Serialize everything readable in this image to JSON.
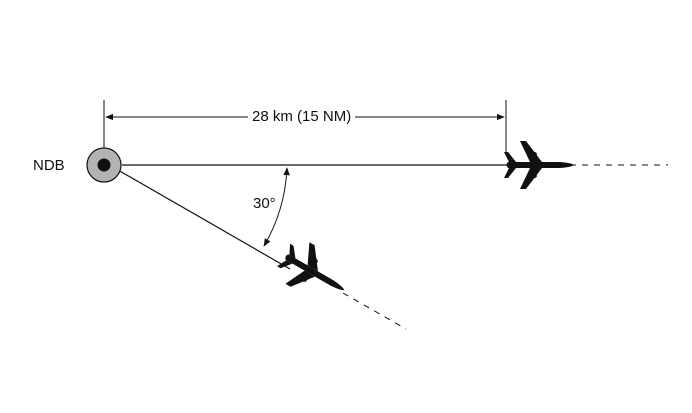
{
  "labels": {
    "station": "NDB",
    "distance": "28 km (15 NM)",
    "angle": "30°"
  },
  "icons": {
    "station": "ndb-station-icon",
    "aircraft_a": "aircraft-icon",
    "aircraft_b": "aircraft-icon"
  },
  "colors": {
    "ink": "#111111",
    "station_ring": "#b3b3b3"
  }
}
